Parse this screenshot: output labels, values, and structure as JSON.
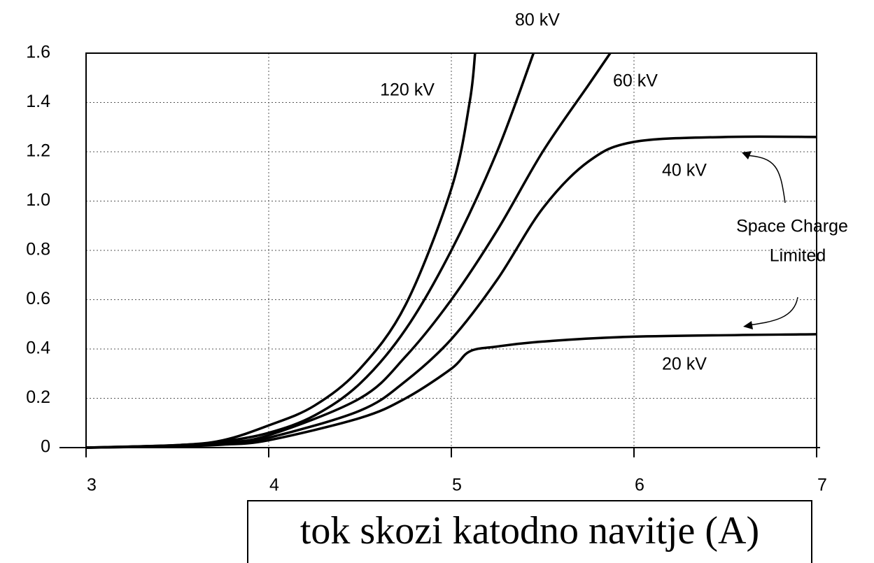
{
  "chart_data": {
    "type": "line",
    "xlabel": "tok skozi katodno navitje (A)",
    "annotation_lines": [
      "Space Charge",
      "Limited"
    ],
    "xlim": [
      3,
      7
    ],
    "xticks": [
      3,
      4,
      5,
      6,
      7
    ],
    "ylim": [
      0,
      1.6
    ],
    "yticks": [
      0,
      0.2,
      0.4,
      0.6,
      0.8,
      {
        "value": 1,
        "label": "1.0"
      },
      1.2,
      1.4,
      1.6
    ],
    "grid": true,
    "color": "#000000",
    "series": [
      {
        "name": "120 kV",
        "x": [
          3,
          3.5,
          3.75,
          4,
          4.25,
          4.5,
          4.75,
          5,
          5.1,
          5.13
        ],
        "values": [
          0,
          0.01,
          0.03,
          0.09,
          0.17,
          0.32,
          0.58,
          1.05,
          1.4,
          1.6
        ]
      },
      {
        "name": "80 kV",
        "x": [
          3,
          3.5,
          3.75,
          4,
          4.25,
          4.5,
          4.75,
          5,
          5.25,
          5.45
        ],
        "values": [
          0,
          0.01,
          0.025,
          0.06,
          0.13,
          0.26,
          0.48,
          0.8,
          1.2,
          1.6
        ]
      },
      {
        "name": "60 kV",
        "x": [
          3,
          3.5,
          3.75,
          4,
          4.5,
          4.75,
          5,
          5.25,
          5.5,
          5.75,
          5.87
        ],
        "values": [
          0,
          0.008,
          0.02,
          0.05,
          0.2,
          0.37,
          0.6,
          0.88,
          1.2,
          1.47,
          1.6
        ]
      },
      {
        "name": "40 kV",
        "x": [
          3,
          3.5,
          3.75,
          4,
          4.5,
          4.75,
          5,
          5.25,
          5.5,
          5.75,
          6,
          6.5,
          7
        ],
        "values": [
          0,
          0.006,
          0.015,
          0.04,
          0.15,
          0.27,
          0.44,
          0.68,
          0.97,
          1.16,
          1.24,
          1.26,
          1.26
        ]
      },
      {
        "name": "20 kV",
        "x": [
          3,
          3.5,
          3.75,
          4,
          4.5,
          4.75,
          5,
          5.1,
          5.25,
          5.5,
          6,
          7
        ],
        "values": [
          0,
          0.005,
          0.012,
          0.03,
          0.12,
          0.2,
          0.32,
          0.39,
          0.41,
          0.43,
          0.45,
          0.46
        ]
      }
    ]
  }
}
